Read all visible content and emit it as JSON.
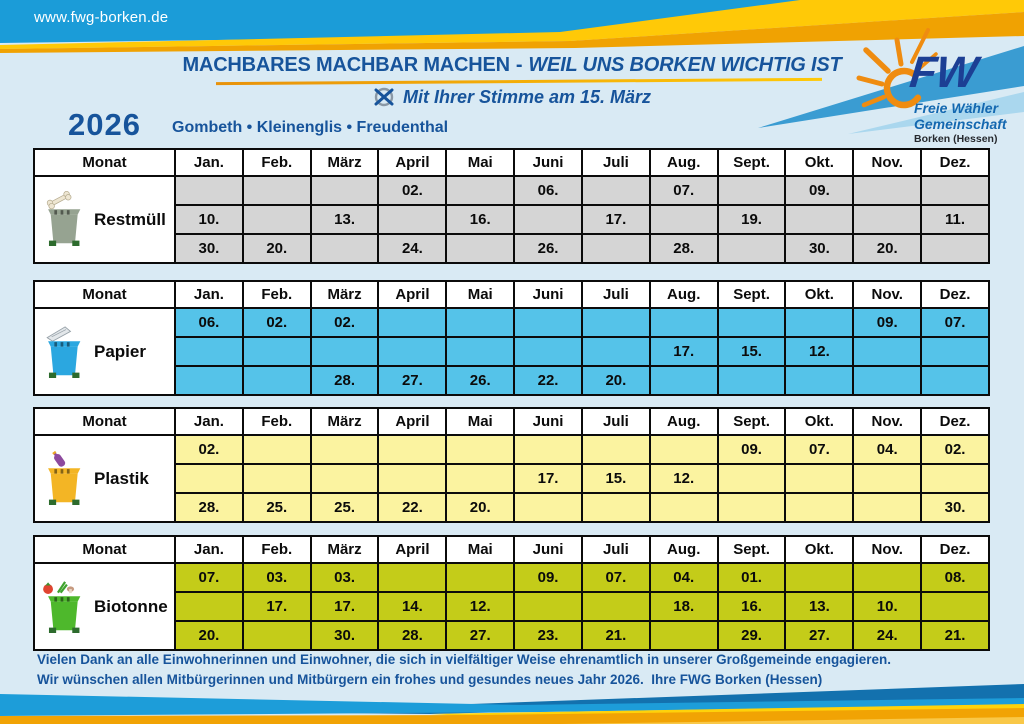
{
  "banner": {
    "url_text": "www.fwg-borken.de"
  },
  "campaign": {
    "slogan_bold": "MACHBARES MACHBAR MACHEN",
    "slogan_sep": "-",
    "slogan_italic": "WEIL UNS BORKEN WICHTIG IST",
    "vote_text": "Mit Ihrer Stimme am 15. März"
  },
  "logo": {
    "abbr": "FW",
    "org_line1": "Freie Wähler",
    "org_line2": "Gemeinschaft",
    "org_line3": "Borken (Hessen)"
  },
  "calendar": {
    "year": "2026",
    "villages": "Gombeth • Kleinenglis • Freudenthal",
    "month_col_label": "Monat",
    "months": [
      "Jan.",
      "Feb.",
      "März",
      "April",
      "Mai",
      "Juni",
      "Juli",
      "Aug.",
      "Sept.",
      "Okt.",
      "Nov.",
      "Dez."
    ],
    "tables": [
      {
        "name": "Restmüll",
        "icon": "bone",
        "bin_color": "#96a391",
        "cell_color": "#d5d5d5",
        "rows": [
          [
            "",
            "",
            "",
            "02.",
            "",
            "06.",
            "",
            "07.",
            "",
            "09.",
            "",
            ""
          ],
          [
            "10.",
            "",
            "13.",
            "",
            "16.",
            "",
            "17.",
            "",
            "19.",
            "",
            "",
            "11."
          ],
          [
            "30.",
            "20.",
            "",
            "24.",
            "",
            "26.",
            "",
            "28.",
            "",
            "30.",
            "20.",
            ""
          ]
        ]
      },
      {
        "name": "Papier",
        "icon": "paper",
        "bin_color": "#2ba7e0",
        "cell_color": "#55c3e9",
        "rows": [
          [
            "06.",
            "02.",
            "02.",
            "",
            "",
            "",
            "",
            "",
            "",
            "",
            "09.",
            "07."
          ],
          [
            "",
            "",
            "",
            "",
            "",
            "",
            "",
            "17.",
            "15.",
            "12.",
            "",
            ""
          ],
          [
            "",
            "",
            "28.",
            "27.",
            "26.",
            "22.",
            "20.",
            "",
            "",
            "",
            "",
            ""
          ]
        ]
      },
      {
        "name": "Plastik",
        "icon": "bottle",
        "bin_color": "#f3b525",
        "cell_color": "#fbf3a0",
        "rows": [
          [
            "02.",
            "",
            "",
            "",
            "",
            "",
            "",
            "",
            "09.",
            "07.",
            "04.",
            "02."
          ],
          [
            "",
            "",
            "",
            "",
            "",
            "17.",
            "15.",
            "12.",
            "",
            "",
            "",
            ""
          ],
          [
            "28.",
            "25.",
            "25.",
            "22.",
            "20.",
            "",
            "",
            "",
            "",
            "",
            "",
            "30."
          ]
        ]
      },
      {
        "name": "Biotonne",
        "icon": "vegetables",
        "bin_color": "#4eb82c",
        "cell_color": "#c4cc19",
        "rows": [
          [
            "07.",
            "03.",
            "03.",
            "",
            "",
            "09.",
            "07.",
            "04.",
            "01.",
            "",
            "",
            "08."
          ],
          [
            "",
            "17.",
            "17.",
            "14.",
            "12.",
            "",
            "",
            "18.",
            "16.",
            "13.",
            "10.",
            ""
          ],
          [
            "20.",
            "",
            "30.",
            "28.",
            "27.",
            "23.",
            "21.",
            "",
            "29.",
            "27.",
            "24.",
            "21."
          ]
        ]
      }
    ]
  },
  "footer": {
    "line1": "Vielen Dank an alle Einwohnerinnen und Einwohner, die sich in vielfältiger Weise ehrenamtlich in unserer Großgemeinde engagieren.",
    "line2": "Wir wünschen allen Mitbürgerinnen und Mitbürgern ein frohes und gesundes neues Jahr 2026.  Ihre FWG Borken (Hessen)"
  },
  "colors": {
    "banner_blue": "#1b9cd8",
    "accent_orange": "#f0a202",
    "accent_yellow": "#ffcb05",
    "dark_blue_text": "#17549b",
    "logo_navy": "#1c3f94",
    "page_background": "#d9eaf4"
  }
}
